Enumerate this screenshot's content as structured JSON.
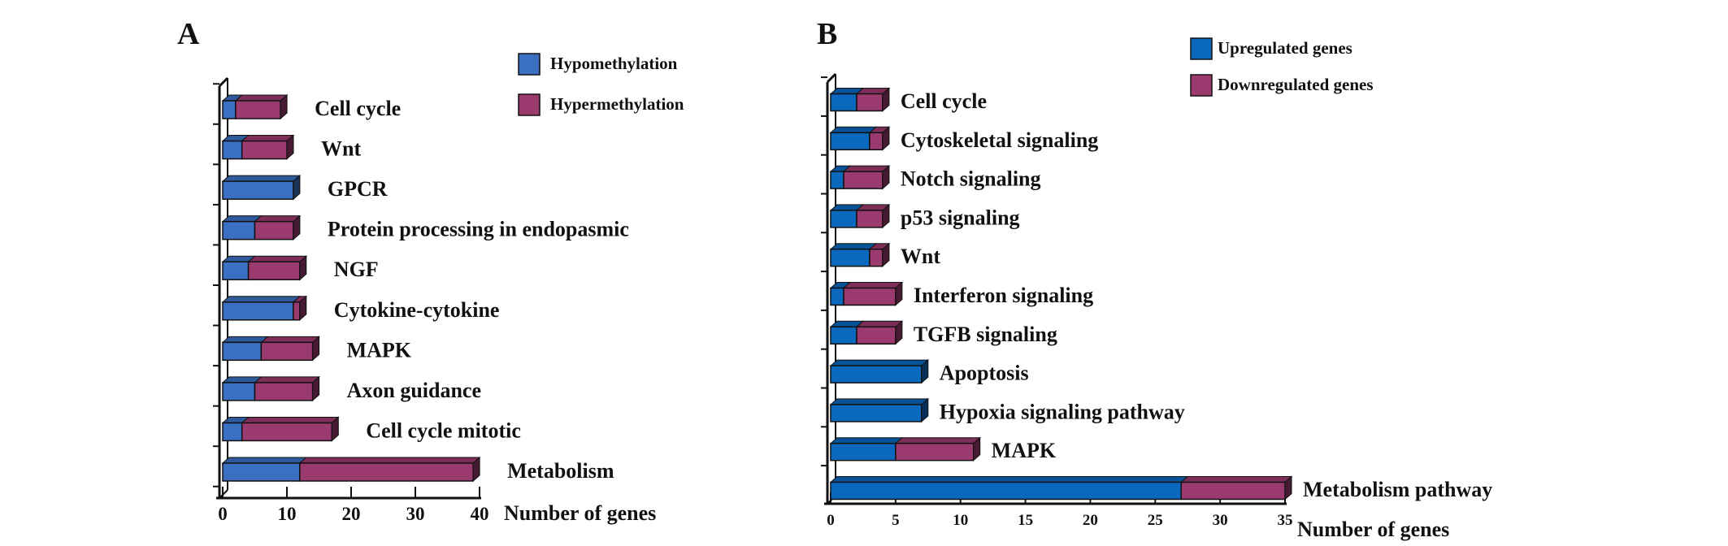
{
  "chart_data": [
    {
      "type": "bar",
      "orientation": "horizontal",
      "stacked": true,
      "style": "3d",
      "panel_label": "A",
      "xlabel": "Number of genes",
      "xlim": [
        0,
        40
      ],
      "xticks": [
        0,
        10,
        20,
        30,
        40
      ],
      "legend_placement": "top-right",
      "categories": [
        "Cell cycle",
        "Wnt",
        "GPCR",
        "Protein processing in endopasmic",
        "NGF",
        "Cytokine-cytokine",
        "MAPK",
        "Axon guidance",
        "Cell cycle mitotic",
        "Metabolism"
      ],
      "series": [
        {
          "name": "Hypomethylation",
          "color": "#3a6fc2",
          "values": [
            2,
            3,
            11,
            5,
            4,
            11,
            6,
            5,
            3,
            12
          ]
        },
        {
          "name": "Hypermethylation",
          "color": "#9b3a6e",
          "values": [
            7,
            7,
            0,
            6,
            8,
            1,
            8,
            9,
            14,
            27
          ]
        }
      ]
    },
    {
      "type": "bar",
      "orientation": "horizontal",
      "stacked": true,
      "style": "3d",
      "panel_label": "B",
      "xlabel": "Number of genes",
      "xlim": [
        0,
        35
      ],
      "xticks": [
        0,
        5,
        10,
        15,
        20,
        25,
        30,
        35
      ],
      "legend_placement": "top-right",
      "categories": [
        "Cell cycle",
        "Cytoskeletal signaling",
        "Notch signaling",
        "p53 signaling",
        "Wnt",
        "Interferon signaling",
        "TGFB signaling",
        "Apoptosis",
        "Hypoxia signaling pathway",
        "MAPK",
        "Metabolism pathway"
      ],
      "series": [
        {
          "name": "Upregulated genes",
          "color": "#0a68bd",
          "values": [
            2,
            3,
            1,
            2,
            3,
            1,
            2,
            7,
            7,
            5,
            27
          ]
        },
        {
          "name": "Downregulated genes",
          "color": "#9b3a6e",
          "values": [
            2,
            1,
            3,
            2,
            1,
            4,
            3,
            0,
            0,
            6,
            8
          ]
        }
      ]
    }
  ]
}
